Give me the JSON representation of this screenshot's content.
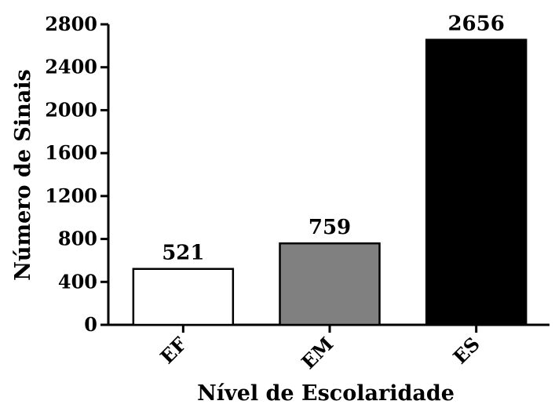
{
  "chart_data": {
    "type": "bar",
    "categories": [
      "EF",
      "EM",
      "ES"
    ],
    "values": [
      521,
      759,
      2656
    ],
    "data_labels": [
      "521",
      "759",
      "2656"
    ],
    "bar_colors": [
      "#ffffff",
      "#808080",
      "#000000"
    ],
    "title": "",
    "xlabel": "Nível de Escolaridade",
    "ylabel": "Número de Sinais",
    "ylim": [
      0,
      2800
    ],
    "yticks": [
      0,
      400,
      800,
      1200,
      1600,
      2000,
      2400,
      2800
    ],
    "grid": false,
    "legend": "none"
  }
}
